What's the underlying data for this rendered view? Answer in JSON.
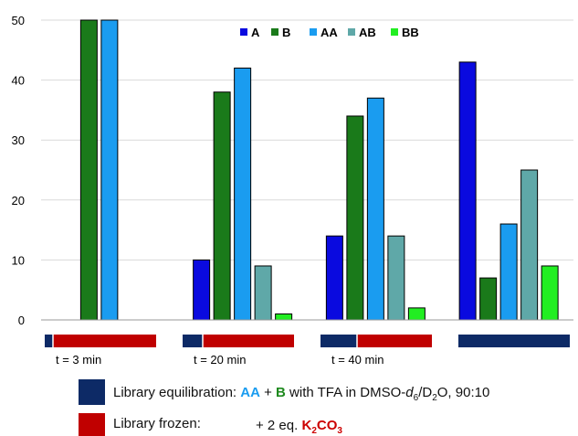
{
  "chart_data": {
    "type": "bar",
    "categories": [
      "t = 3 min",
      "t = 20 min",
      "t = 40 min",
      ""
    ],
    "series": [
      {
        "name": "A",
        "color": "#0a0adf",
        "values": [
          0,
          10,
          14,
          43
        ]
      },
      {
        "name": "B",
        "color": "#1a7a1a",
        "values": [
          50,
          38,
          34,
          7
        ]
      },
      {
        "name": "AA",
        "color": "#1a9cf0",
        "values": [
          50,
          42,
          37,
          16
        ]
      },
      {
        "name": "AB",
        "color": "#5fa8a8",
        "values": [
          0,
          9,
          14,
          25
        ]
      },
      {
        "name": "BB",
        "color": "#22ee22",
        "values": [
          0,
          1,
          2,
          9
        ]
      }
    ],
    "ylim": [
      0,
      50
    ],
    "yticks": [
      0,
      10,
      20,
      30,
      40,
      50
    ],
    "grid": true,
    "legend_position": "top-center",
    "timeline": {
      "equilibration_color": "#0d2a66",
      "frozen_color": "#c00000"
    }
  },
  "key": {
    "equilibration": {
      "prefix": "Library equilibration: ",
      "aa": "AA",
      "plus": " + ",
      "b": "B",
      "mid": " with TFA in DMSO-",
      "d": "d",
      "d_sub": "6",
      "tail": "/D",
      "o_sub": "2",
      "end": "O, 90:10"
    },
    "frozen": {
      "label": "Library frozen:",
      "eq": "+ 2 eq. ",
      "k": "K",
      "k_sub": "2",
      "co": "CO",
      "co_sub": "3"
    }
  }
}
